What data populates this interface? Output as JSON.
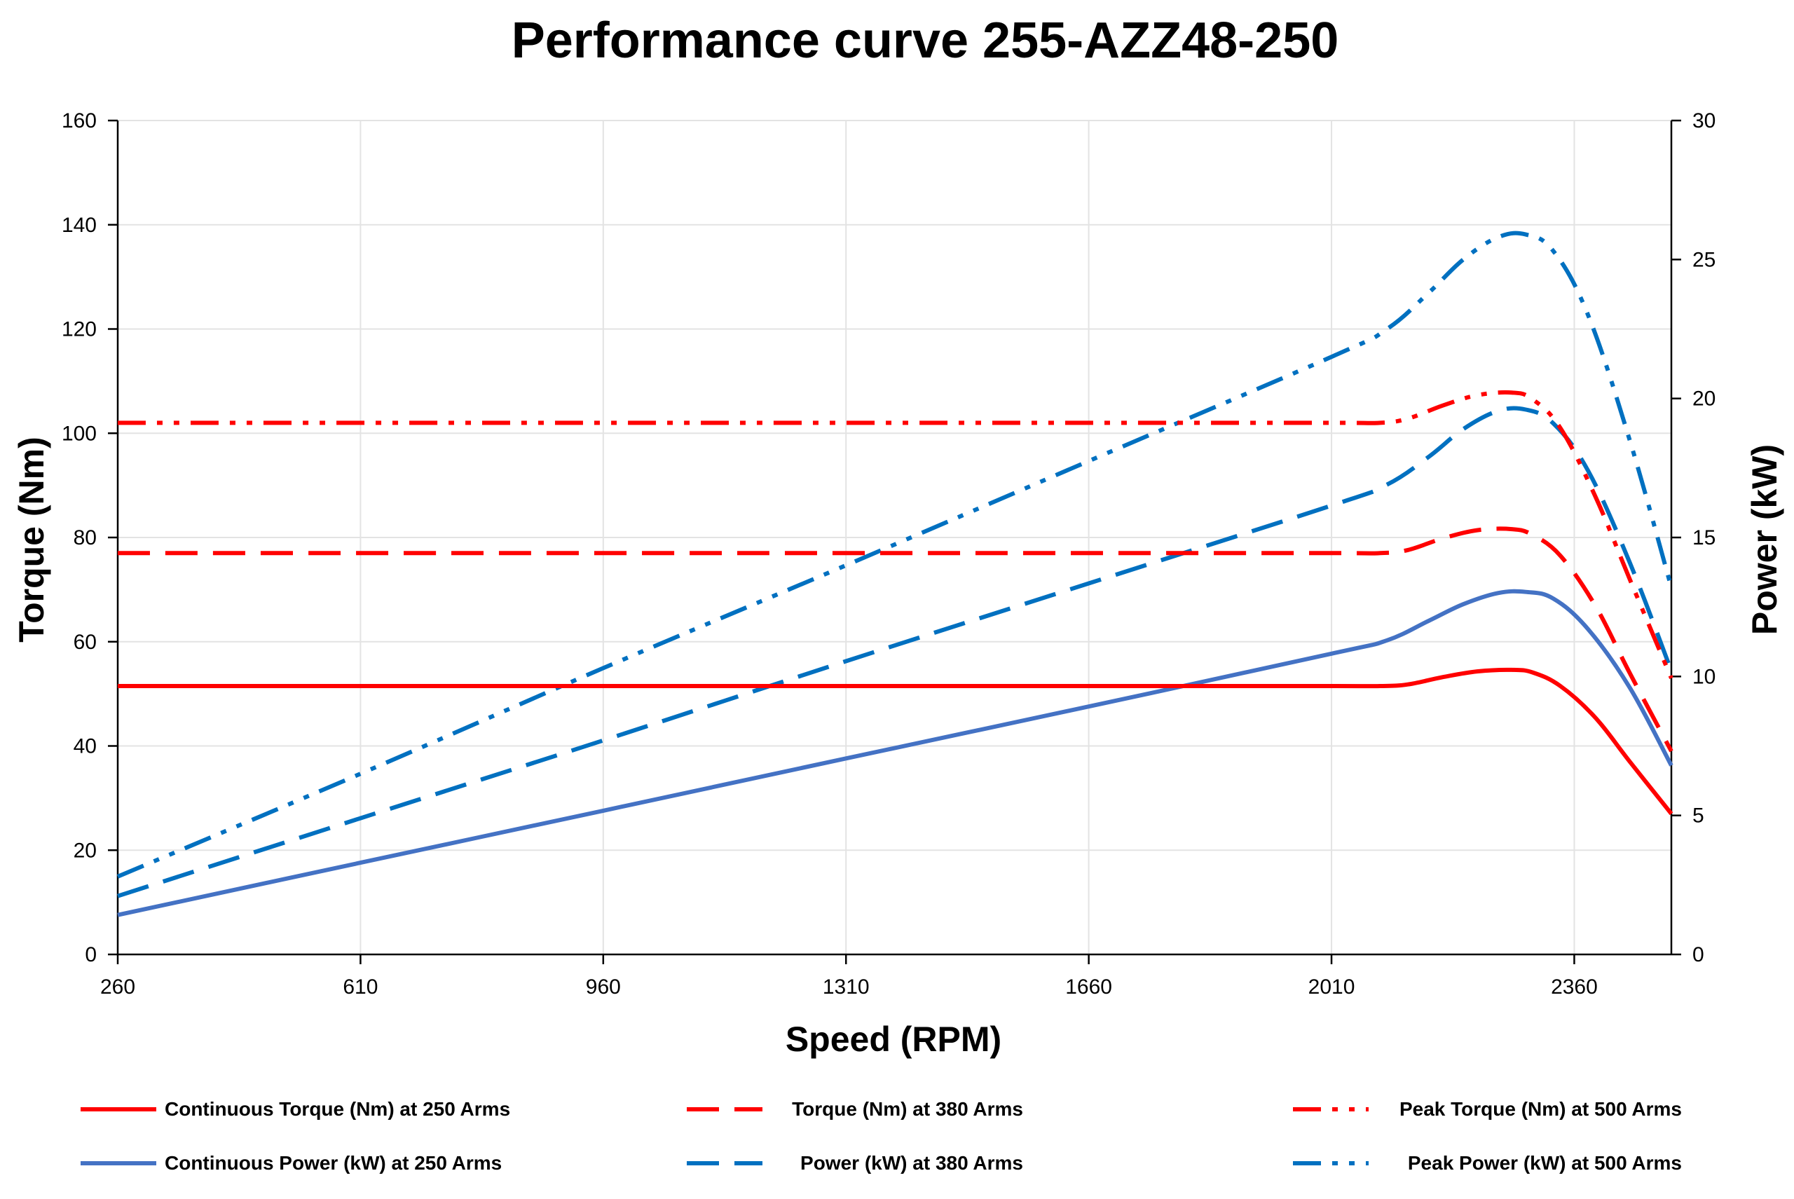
{
  "chart_data": {
    "type": "line",
    "title": "Performance curve 255-AZZ48-250",
    "xlabel": "Speed (RPM)",
    "ylabel": "Torque (Nm)",
    "y2label": "Power (kW)",
    "xlim": [
      260,
      2500
    ],
    "ylim": [
      0,
      160
    ],
    "y2lim": [
      0,
      30
    ],
    "xticks": [
      "260",
      "610",
      "960",
      "1310",
      "1660",
      "2010",
      "2360"
    ],
    "yticks": [
      "0",
      "20",
      "40",
      "60",
      "80",
      "100",
      "120",
      "140",
      "160"
    ],
    "y2ticks": [
      "0",
      "5",
      "10",
      "15",
      "20",
      "25",
      "30"
    ],
    "grid": true,
    "legend_position": "bottom",
    "series": [
      {
        "name": "Continuous Torque (Nm) at 250 Arms",
        "axis": "left",
        "color": "#ff0000",
        "style": "solid",
        "x": [
          260,
          610,
          960,
          1310,
          1660,
          2010,
          2080,
          2120,
          2170,
          2220,
          2270,
          2300,
          2340,
          2390,
          2440,
          2500
        ],
        "y": [
          51.5,
          51.5,
          51.5,
          51.5,
          51.5,
          51.5,
          51.5,
          51.8,
          53.2,
          54.3,
          54.6,
          54.1,
          51.5,
          45.5,
          37,
          27
        ]
      },
      {
        "name": "Torque (Nm) at 380 Arms",
        "axis": "left",
        "color": "#ff0000",
        "style": "dashed",
        "x": [
          260,
          610,
          960,
          1310,
          1660,
          2010,
          2080,
          2120,
          2170,
          2220,
          2270,
          2300,
          2340,
          2390,
          2440,
          2500
        ],
        "y": [
          77,
          77,
          77,
          77,
          77,
          77,
          77,
          77.6,
          79.8,
          81.4,
          81.6,
          80.5,
          76.5,
          67,
          54,
          39
        ]
      },
      {
        "name": "Peak Torque (Nm) at 500 Arms",
        "axis": "left",
        "color": "#ff0000",
        "style": "dashdotdot",
        "x": [
          260,
          610,
          960,
          1310,
          1660,
          2010,
          2080,
          2120,
          2170,
          2220,
          2270,
          2300,
          2340,
          2390,
          2440,
          2500
        ],
        "y": [
          102,
          102,
          102,
          102,
          102,
          102,
          102,
          102.8,
          105.3,
          107.3,
          107.8,
          106.5,
          101,
          88,
          72,
          53
        ]
      },
      {
        "name": "Continuous Power (kW) at 250 Arms",
        "axis": "right",
        "color": "#4472c4",
        "style": "solid",
        "x": [
          260,
          610,
          960,
          1310,
          1660,
          2010,
          2090,
          2150,
          2200,
          2250,
          2290,
          2330,
          2380,
          2440,
          2500
        ],
        "y": [
          1.42,
          3.3,
          5.17,
          7.05,
          8.92,
          10.82,
          11.3,
          12.0,
          12.6,
          13.0,
          13.04,
          12.8,
          11.7,
          9.6,
          6.8
        ]
      },
      {
        "name": "Power (kW) at 380 Arms",
        "axis": "right",
        "color": "#0070c0",
        "style": "dashed",
        "x": [
          260,
          610,
          960,
          1310,
          1660,
          2010,
          2090,
          2150,
          2200,
          2250,
          2290,
          2330,
          2380,
          2440,
          2500
        ],
        "y": [
          2.1,
          4.9,
          7.7,
          10.55,
          13.35,
          16.15,
          16.9,
          17.9,
          18.9,
          19.55,
          19.6,
          19.1,
          17.4,
          14.1,
          10.2
        ]
      },
      {
        "name": "Peak Power (kW) at 500 Arms",
        "axis": "right",
        "color": "#0070c0",
        "style": "dashdotdot",
        "x": [
          260,
          610,
          960,
          1310,
          1660,
          2010,
          2090,
          2150,
          2200,
          2250,
          2290,
          2330,
          2380,
          2440,
          2500
        ],
        "y": [
          2.8,
          6.5,
          10.3,
          14.0,
          17.75,
          21.5,
          22.5,
          23.8,
          25.0,
          25.8,
          25.9,
          25.3,
          23.0,
          18.5,
          13.2
        ]
      }
    ]
  }
}
